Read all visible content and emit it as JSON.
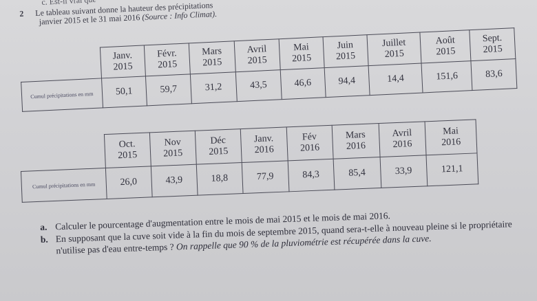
{
  "exercise": {
    "top_line": "c. Est-il vrai que",
    "number": "2",
    "intro_line1": "Le tableau suivant donne la hauteur des précipitations",
    "intro_line2": "janvier 2015 et le 31 mai 2016",
    "intro_source": "(Source : Info Climat)."
  },
  "row_label": "Cumul précipitations en mm",
  "table1": {
    "months": [
      {
        "month": "Janv.",
        "year": "2015",
        "value": "50,1"
      },
      {
        "month": "Févr.",
        "year": "2015",
        "value": "59,7"
      },
      {
        "month": "Mars",
        "year": "2015",
        "value": "31,2"
      },
      {
        "month": "Avril",
        "year": "2015",
        "value": "43,5"
      },
      {
        "month": "Mai",
        "year": "2015",
        "value": "46,6"
      },
      {
        "month": "Juin",
        "year": "2015",
        "value": "94,4"
      },
      {
        "month": "Juillet",
        "year": "2015",
        "value": "14,4"
      },
      {
        "month": "Août",
        "year": "2015",
        "value": "151,6"
      },
      {
        "month": "Sept.",
        "year": "2015",
        "value": "83,6"
      }
    ]
  },
  "table2": {
    "months": [
      {
        "month": "Oct.",
        "year": "2015",
        "value": "26,0"
      },
      {
        "month": "Nov",
        "year": "2015",
        "value": "43,9"
      },
      {
        "month": "Déc",
        "year": "2015",
        "value": "18,8"
      },
      {
        "month": "Janv.",
        "year": "2016",
        "value": "77,9"
      },
      {
        "month": "Fév",
        "year": "2016",
        "value": "84,3"
      },
      {
        "month": "Mars",
        "year": "2016",
        "value": "85,4"
      },
      {
        "month": "Avril",
        "year": "2016",
        "value": "33,9"
      },
      {
        "month": "Mai",
        "year": "2016",
        "value": "121,1"
      }
    ]
  },
  "questions": [
    {
      "label": "a.",
      "text": "Calculer le pourcentage d'augmentation entre le mois de mai 2015 et le mois de mai 2016.",
      "italic": ""
    },
    {
      "label": "b.",
      "text": "En supposant que la cuve soit vide à la fin du mois de septembre 2015, quand sera-t-elle à nouveau pleine si le propriétaire n'utilise pas d'eau entre-temps ?",
      "italic": "On rappelle que 90 % de la pluviométrie est récupérée dans la cuve."
    }
  ]
}
